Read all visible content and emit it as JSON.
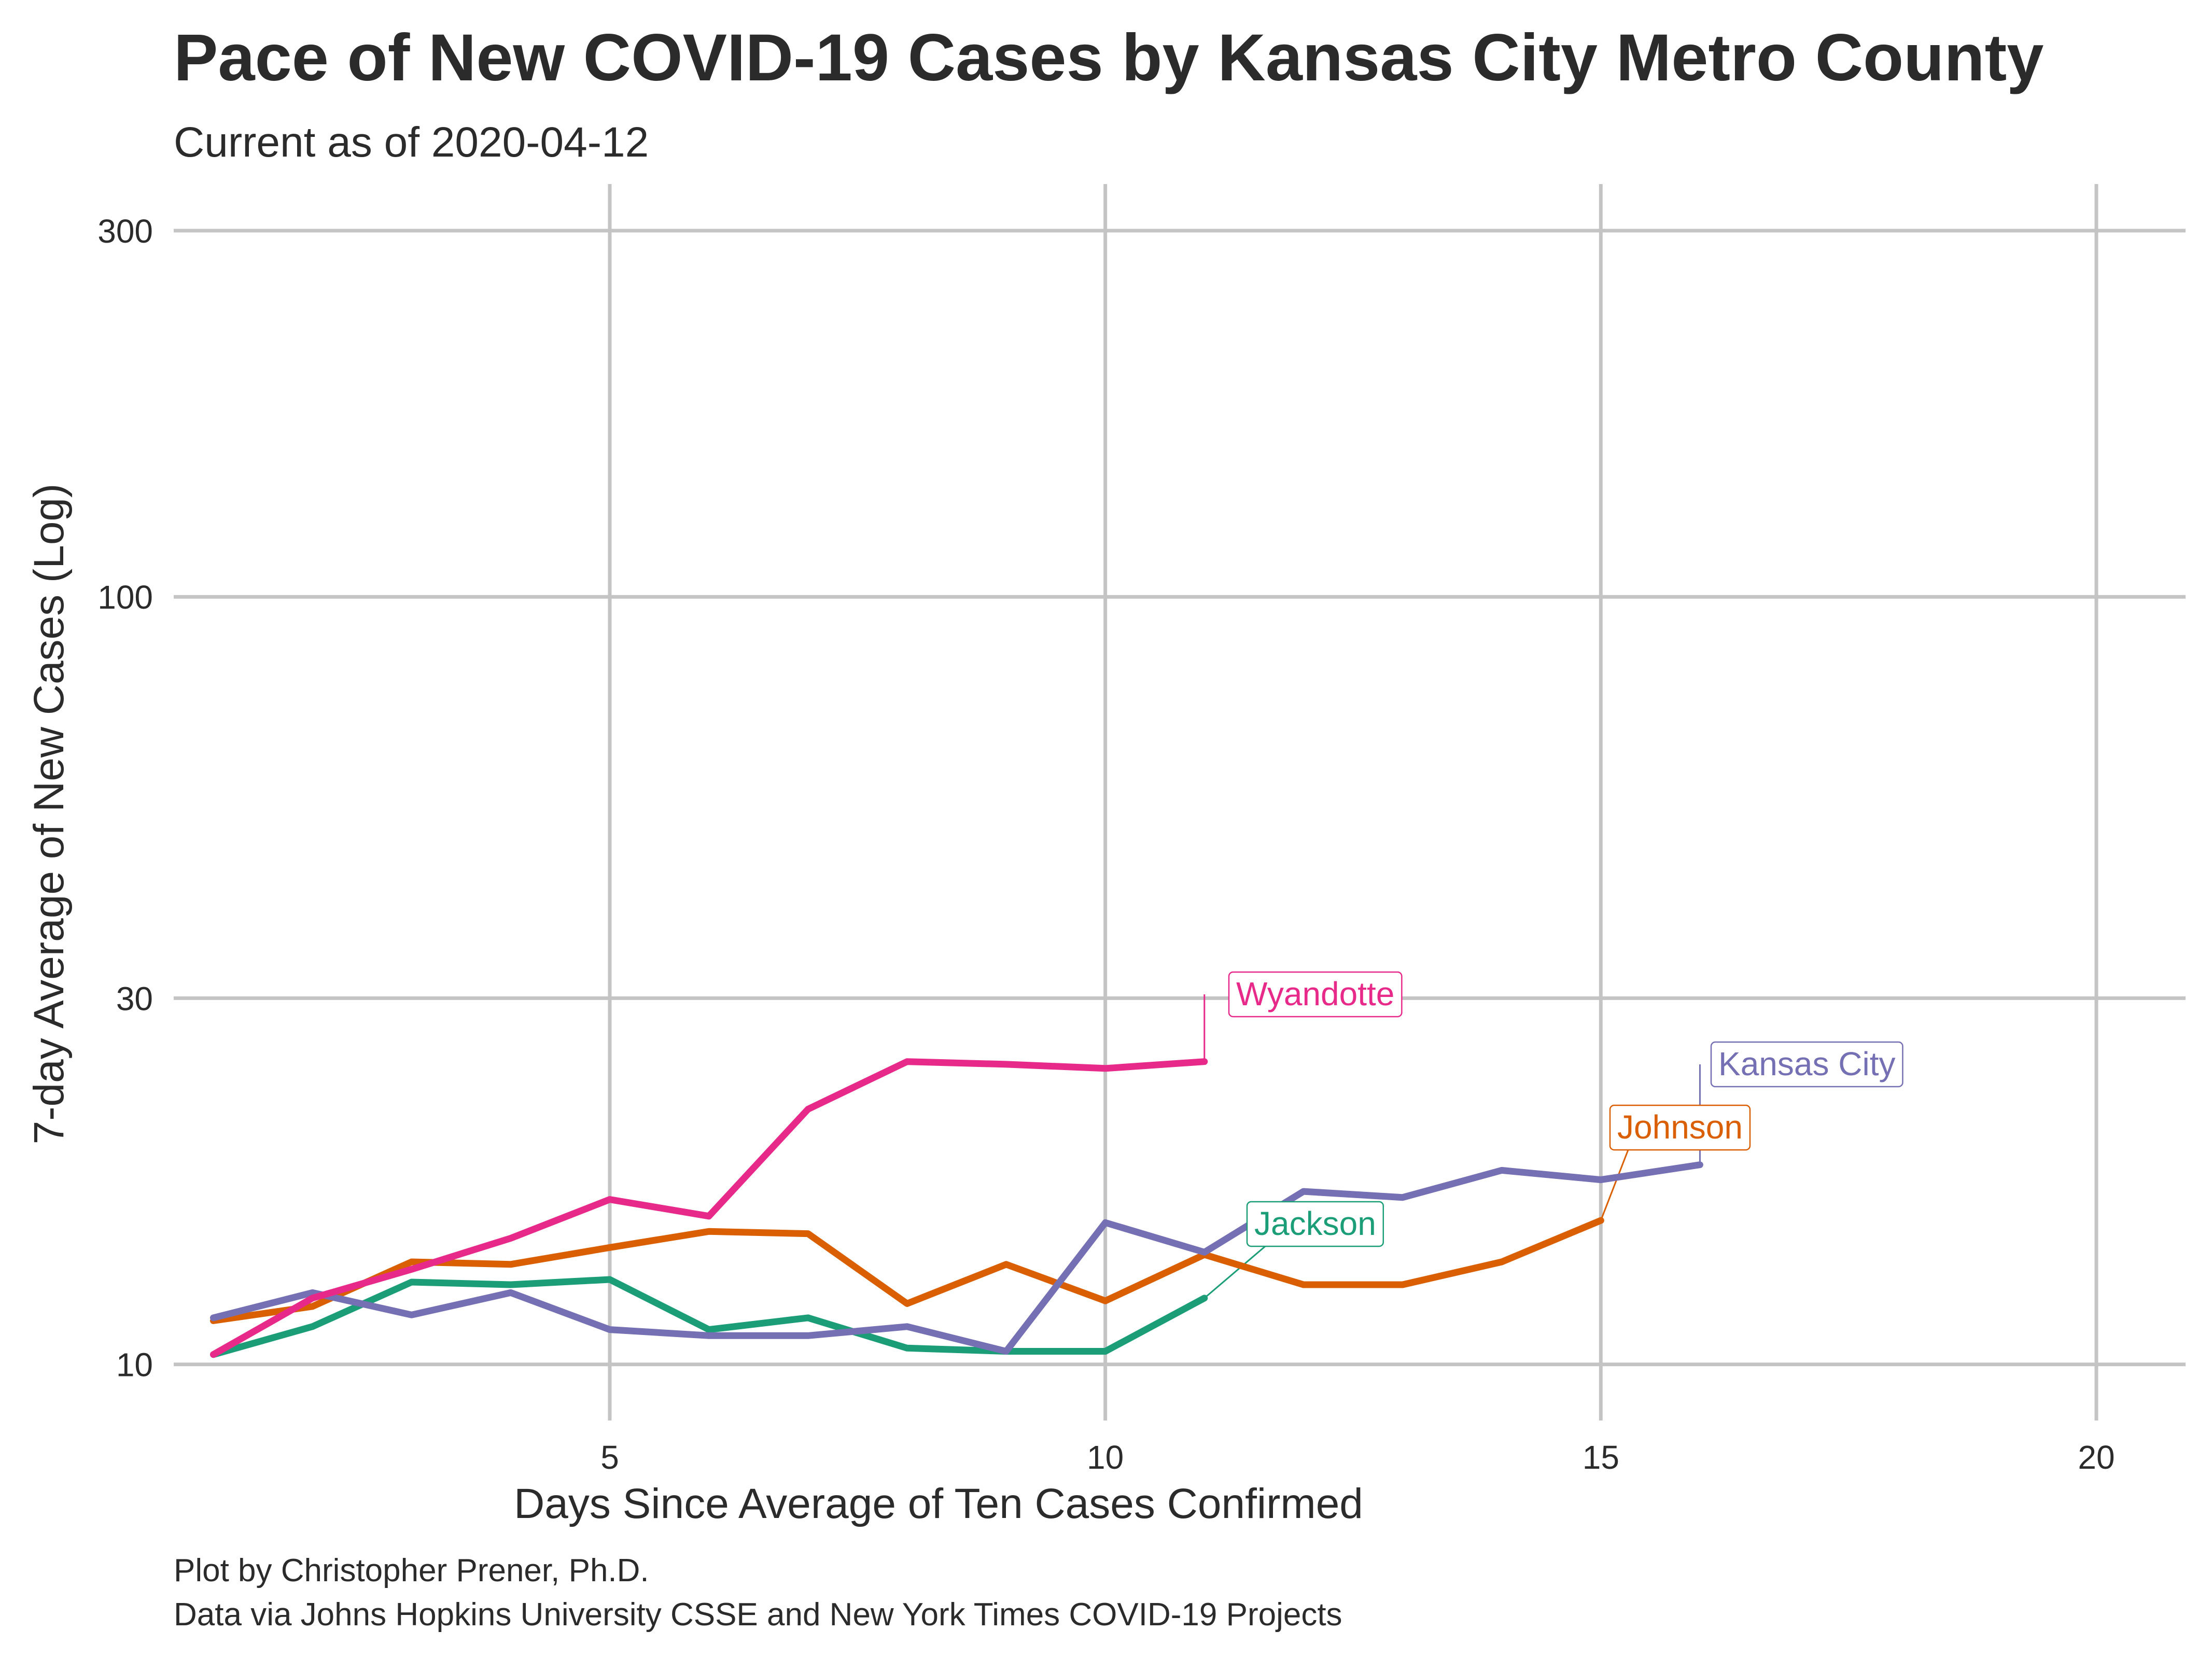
{
  "chart_data": {
    "type": "line",
    "title": "Pace of New COVID-19 Cases by Kansas City Metro County",
    "subtitle": "Current as of 2020-04-12",
    "xlabel": "Days Since Average of Ten Cases Confirmed",
    "ylabel": "7-day Average of New Cases (Log)",
    "y_scale": "log",
    "xlim": [
      0.6,
      20.9
    ],
    "ylim": [
      8.45,
      345
    ],
    "x_ticks": [
      5,
      10,
      15,
      20
    ],
    "x_tick_labels": [
      "5",
      "10",
      "15",
      "20"
    ],
    "y_ticks": [
      10,
      30,
      100,
      300
    ],
    "y_tick_labels": [
      "10",
      "30",
      "100",
      "300"
    ],
    "grid": true,
    "legend": "none (direct labels at series ends)",
    "caption_lines": [
      "Plot by Christopher Prener, Ph.D.",
      "Data via Johns Hopkins University CSSE and New York Times COVID-19 Projects"
    ],
    "series": [
      {
        "name": "Johnson",
        "color": "#d95f02",
        "x": [
          1,
          2,
          3,
          4,
          5,
          6,
          7,
          8,
          9,
          10,
          11,
          12,
          13,
          14,
          15
        ],
        "y": [
          11.4,
          11.9,
          13.6,
          13.5,
          14.2,
          14.9,
          14.8,
          12.0,
          13.5,
          12.1,
          13.9,
          12.7,
          12.7,
          13.6,
          15.4
        ]
      },
      {
        "name": "Jackson",
        "color": "#1b9e77",
        "x": [
          1,
          2,
          3,
          4,
          5,
          6,
          7,
          8,
          9,
          10,
          11
        ],
        "y": [
          10.3,
          11.2,
          12.8,
          12.7,
          12.9,
          11.1,
          11.5,
          10.5,
          10.4,
          10.4,
          12.2
        ]
      },
      {
        "name": "Kansas City",
        "color": "#7570b3",
        "x": [
          1,
          2,
          3,
          4,
          5,
          6,
          7,
          8,
          9,
          10,
          11,
          12,
          13,
          14,
          15,
          16
        ],
        "y": [
          11.5,
          12.4,
          11.6,
          12.4,
          11.1,
          10.9,
          10.9,
          11.2,
          10.4,
          15.3,
          14.0,
          16.8,
          16.5,
          17.9,
          17.4,
          18.2
        ]
      },
      {
        "name": "Wyandotte",
        "color": "#e7298a",
        "x": [
          1,
          2,
          3,
          4,
          5,
          6,
          7,
          8,
          9,
          10,
          11
        ],
        "y": [
          10.3,
          12.2,
          13.3,
          14.6,
          16.4,
          15.6,
          21.5,
          24.8,
          24.6,
          24.3,
          24.8
        ]
      }
    ]
  }
}
